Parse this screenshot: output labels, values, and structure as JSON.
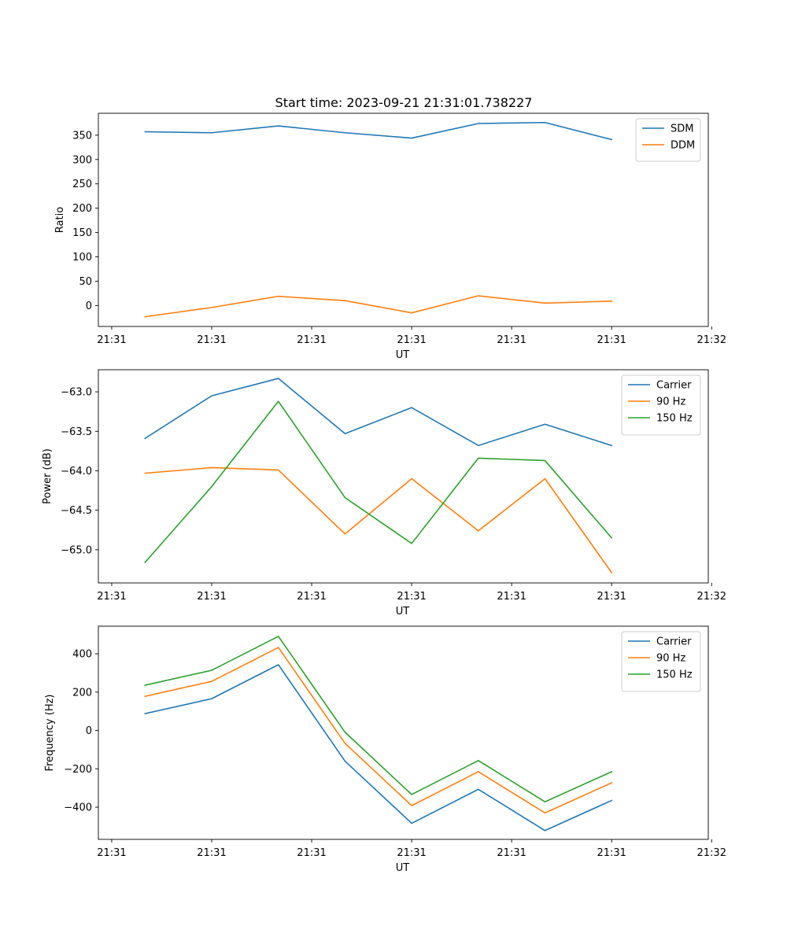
{
  "figure": {
    "title": "Start time: 2023-09-21 21:31:01.738227"
  },
  "colors": {
    "blue": "#1f77b4",
    "orange": "#ff7f0e",
    "green": "#2ca02c"
  },
  "chart_data": [
    {
      "type": "line",
      "title": "Start time: 2023-09-21 21:31:01.738227",
      "xlabel": "UT",
      "ylabel": "Ratio",
      "x": [
        1,
        2,
        3,
        4,
        5,
        6,
        7,
        8
      ],
      "xlim": [
        0.3,
        9.45
      ],
      "xticks": [
        0.5,
        2,
        3.5,
        5,
        6.5,
        8,
        9.5
      ],
      "xtick_labels": [
        "21:31",
        "21:31",
        "21:31",
        "21:31",
        "21:31",
        "21:31",
        "21:32"
      ],
      "ylim": [
        -43,
        395
      ],
      "yticks": [
        0,
        50,
        100,
        150,
        200,
        250,
        300,
        350
      ],
      "ytick_labels": [
        "0",
        "50",
        "100",
        "150",
        "200",
        "250",
        "300",
        "350"
      ],
      "legend": "top-right",
      "grid": false,
      "series": [
        {
          "name": "SDM",
          "color": "#1f77b4",
          "values": [
            357,
            355,
            369,
            355,
            344,
            374,
            376,
            341
          ]
        },
        {
          "name": "DDM",
          "color": "#ff7f0e",
          "values": [
            -23,
            -4,
            19,
            10,
            -15,
            20,
            5,
            9
          ]
        }
      ]
    },
    {
      "type": "line",
      "title": "",
      "xlabel": "UT",
      "ylabel": "Power (dB)",
      "x": [
        1,
        2,
        3,
        4,
        5,
        6,
        7,
        8
      ],
      "xlim": [
        0.3,
        9.45
      ],
      "xticks": [
        0.5,
        2,
        3.5,
        5,
        6.5,
        8,
        9.5
      ],
      "xtick_labels": [
        "21:31",
        "21:31",
        "21:31",
        "21:31",
        "21:31",
        "21:31",
        "21:32"
      ],
      "ylim": [
        -65.42,
        -62.72
      ],
      "yticks": [
        -65.0,
        -64.5,
        -64.0,
        -63.5,
        -63.0
      ],
      "ytick_labels": [
        "−65.0",
        "−64.5",
        "−64.0",
        "−63.5",
        "−63.0"
      ],
      "legend": "top-right",
      "grid": false,
      "series": [
        {
          "name": "Carrier",
          "color": "#1f77b4",
          "values": [
            -63.59,
            -63.05,
            -62.83,
            -63.53,
            -63.2,
            -63.68,
            -63.41,
            -63.68
          ]
        },
        {
          "name": "90 Hz",
          "color": "#ff7f0e",
          "values": [
            -64.03,
            -63.96,
            -63.99,
            -64.8,
            -64.1,
            -64.76,
            -64.1,
            -65.29
          ]
        },
        {
          "name": "150 Hz",
          "color": "#2ca02c",
          "values": [
            -65.16,
            -64.2,
            -63.12,
            -64.34,
            -64.92,
            -63.84,
            -63.87,
            -64.85
          ]
        }
      ]
    },
    {
      "type": "line",
      "title": "",
      "xlabel": "UT",
      "ylabel": "Frequency (Hz)",
      "x": [
        1,
        2,
        3,
        4,
        5,
        6,
        7,
        8
      ],
      "xlim": [
        0.3,
        9.45
      ],
      "xticks": [
        0.5,
        2,
        3.5,
        5,
        6.5,
        8,
        9.5
      ],
      "xtick_labels": [
        "21:31",
        "21:31",
        "21:31",
        "21:31",
        "21:31",
        "21:31",
        "21:32"
      ],
      "ylim": [
        -568,
        544
      ],
      "yticks": [
        -400,
        -200,
        0,
        200,
        400
      ],
      "ytick_labels": [
        "−400",
        "−200",
        "0",
        "200",
        "400"
      ],
      "legend": "top-right",
      "grid": false,
      "series": [
        {
          "name": "Carrier",
          "color": "#1f77b4",
          "values": [
            88,
            166,
            343,
            -160,
            -484,
            -307,
            -522,
            -365
          ]
        },
        {
          "name": "90 Hz",
          "color": "#ff7f0e",
          "values": [
            178,
            256,
            433,
            -67,
            -392,
            -215,
            -430,
            -273
          ]
        },
        {
          "name": "150 Hz",
          "color": "#2ca02c",
          "values": [
            236,
            314,
            491,
            -9,
            -334,
            -157,
            -372,
            -215
          ]
        }
      ]
    }
  ]
}
